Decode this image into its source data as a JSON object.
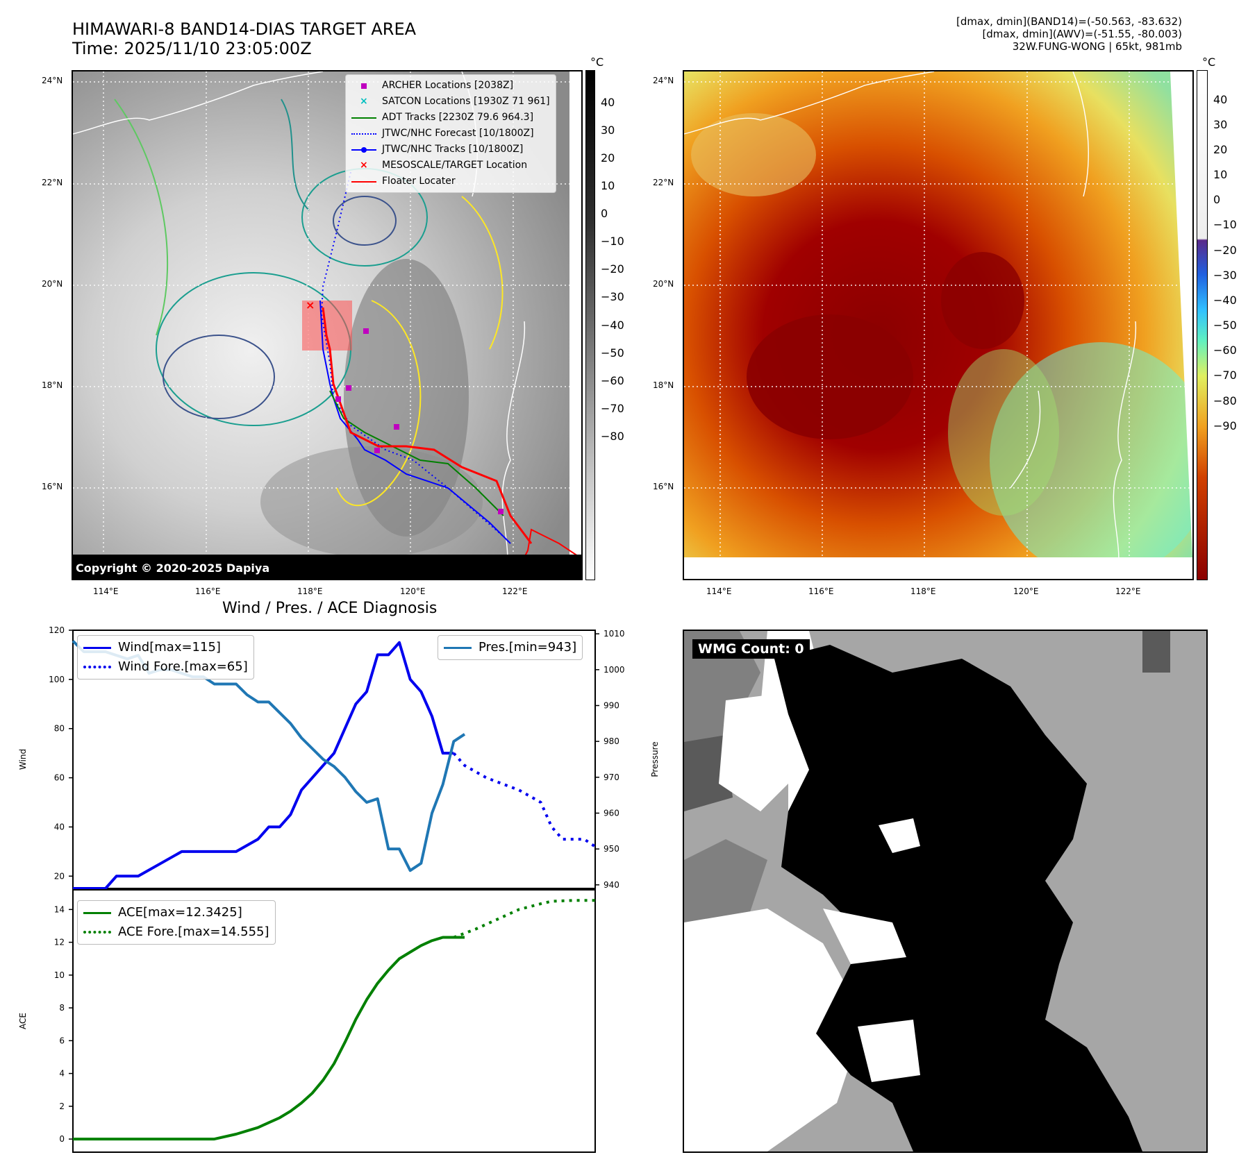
{
  "header": {
    "title_line1": "HIMAWARI-8 BAND14-DIAS TARGET AREA",
    "title_line2": "Time: 2025/11/10 23:05:00Z",
    "info_line1": "[dmax, dmin](BAND14)=(-50.563, -83.632)",
    "info_line2": "[dmax, dmin](AWV)=(-51.55, -80.003)",
    "info_line3": "32W.FUNG-WONG | 65kt, 981mb"
  },
  "colors": {
    "wind": "#0000ee",
    "pressure": "#1f77b4",
    "ace": "#008000",
    "track_red": "#ff0000",
    "archer": "#bf00bf",
    "satcon": "#00bfbf"
  },
  "map": {
    "lat_labels": [
      "24°N",
      "22°N",
      "20°N",
      "18°N",
      "16°N"
    ],
    "lon_labels": [
      "114°E",
      "116°E",
      "118°E",
      "120°E",
      "122°E"
    ],
    "unit": "°C",
    "copyright": "Copyright © 2020-2025 Dapiya",
    "legend": [
      "ARCHER Locations [2038Z]",
      "SATCON Locations [1930Z 71 961]",
      "ADT Tracks [2230Z 79.6 964.3]",
      "JTWC/NHC Forecast [10/1800Z]",
      "JTWC/NHC Tracks [10/1800Z]",
      "MESOSCALE/TARGET Location",
      "Floater Locater"
    ],
    "gray_cbar_ticks": [
      "40",
      "30",
      "20",
      "10",
      "0",
      "−10",
      "−20",
      "−30",
      "−40",
      "−50",
      "−60",
      "−70",
      "−80"
    ],
    "color_cbar_ticks": [
      "40",
      "30",
      "20",
      "10",
      "0",
      "−10",
      "−20",
      "−30",
      "−40",
      "−50",
      "−60",
      "−70",
      "−80",
      "−90"
    ]
  },
  "diagnosis_title": "Wind / Pres. / ACE Diagnosis",
  "wmg_label": "WMG Count: 0",
  "chart_data": [
    {
      "type": "line",
      "title": "Wind / Pres. / ACE Diagnosis",
      "ylabel": "Wind",
      "y2label": "Pressure",
      "ylim": [
        15,
        120
      ],
      "y2lim": [
        939,
        1011
      ],
      "yticks": [
        "20",
        "40",
        "60",
        "80",
        "100",
        "120"
      ],
      "y2ticks": [
        "940",
        "950",
        "960",
        "970",
        "980",
        "990",
        "1000",
        "1010"
      ],
      "xlim": [
        0,
        48
      ],
      "series": [
        {
          "name": "Wind[max=115]",
          "style": "solid",
          "axis": "left",
          "x": [
            0,
            3,
            4,
            6,
            8,
            10,
            12,
            14,
            15,
            17,
            18,
            19,
            20,
            21,
            22,
            23,
            24,
            25,
            26,
            27,
            28,
            29,
            30,
            31,
            32,
            33,
            34,
            35
          ],
          "values": [
            15,
            15,
            20,
            20,
            25,
            30,
            30,
            30,
            30,
            35,
            40,
            40,
            45,
            55,
            60,
            65,
            70,
            80,
            90,
            95,
            110,
            110,
            115,
            100,
            95,
            85,
            70,
            70
          ]
        },
        {
          "name": "Wind Fore.[max=65]",
          "style": "dotted",
          "axis": "left",
          "x": [
            35,
            36,
            38,
            41,
            43,
            44,
            45,
            46,
            47,
            48
          ],
          "values": [
            70,
            65,
            60,
            55,
            50,
            40,
            35,
            35,
            35,
            32
          ]
        },
        {
          "name": "Pres.[min=943]",
          "style": "solid",
          "axis": "right",
          "x": [
            0,
            1,
            3,
            5,
            6,
            7,
            8,
            9,
            11,
            12,
            13,
            15,
            16,
            17,
            18,
            19,
            20,
            21,
            22,
            23,
            24,
            25,
            26,
            27,
            28,
            29,
            30,
            31,
            32,
            33,
            34,
            35,
            36
          ],
          "values": [
            1008,
            1005,
            1005,
            1003,
            1004,
            999,
            1000,
            1000,
            998,
            998,
            996,
            996,
            993,
            991,
            991,
            988,
            985,
            981,
            978,
            975,
            973,
            970,
            966,
            963,
            964,
            950,
            950,
            944,
            946,
            960,
            968,
            980,
            982
          ]
        }
      ]
    },
    {
      "type": "line",
      "ylabel": "ACE",
      "ylim": [
        -0.8,
        15.2
      ],
      "yticks": [
        "0",
        "2",
        "4",
        "6",
        "8",
        "10",
        "12",
        "14"
      ],
      "xlim": [
        0,
        48
      ],
      "series": [
        {
          "name": "ACE[max=12.3425]",
          "style": "solid",
          "x": [
            0,
            13,
            15,
            17,
            18,
            19,
            20,
            21,
            22,
            23,
            24,
            25,
            26,
            27,
            28,
            29,
            30,
            31,
            32,
            33,
            34,
            35,
            36
          ],
          "values": [
            0,
            0,
            0.3,
            0.7,
            1.0,
            1.3,
            1.7,
            2.2,
            2.8,
            3.6,
            4.6,
            5.9,
            7.3,
            8.5,
            9.5,
            10.3,
            11.0,
            11.4,
            11.8,
            12.1,
            12.3,
            12.3,
            12.3
          ]
        },
        {
          "name": "ACE Fore.[max=14.555]",
          "style": "dotted",
          "x": [
            35,
            37,
            39,
            41,
            43,
            44,
            46,
            48
          ],
          "values": [
            12.3,
            12.8,
            13.4,
            14.0,
            14.35,
            14.5,
            14.555,
            14.555
          ]
        }
      ]
    }
  ]
}
